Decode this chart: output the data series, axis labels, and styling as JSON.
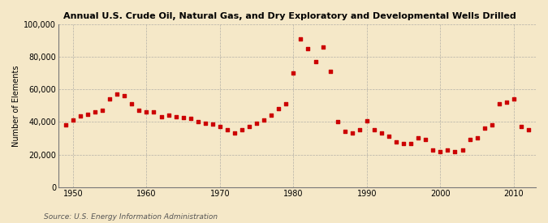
{
  "title": "Annual U.S. Crude Oil, Natural Gas, and Dry Exploratory and Developmental Wells Drilled",
  "ylabel": "Number of Elements",
  "source": "Source: U.S. Energy Information Administration",
  "background_color": "#f5e8c8",
  "plot_bg_color": "#f5e8c8",
  "marker_color": "#cc0000",
  "xlim": [
    1948,
    2013
  ],
  "ylim": [
    0,
    100000
  ],
  "yticks": [
    0,
    20000,
    40000,
    60000,
    80000,
    100000
  ],
  "xticks": [
    1950,
    1960,
    1970,
    1980,
    1990,
    2000,
    2010
  ],
  "years": [
    1949,
    1950,
    1951,
    1952,
    1953,
    1954,
    1955,
    1956,
    1957,
    1958,
    1959,
    1960,
    1961,
    1962,
    1963,
    1964,
    1965,
    1966,
    1967,
    1968,
    1969,
    1970,
    1971,
    1972,
    1973,
    1974,
    1975,
    1976,
    1977,
    1978,
    1979,
    1980,
    1981,
    1982,
    1983,
    1984,
    1985,
    1986,
    1987,
    1988,
    1989,
    1990,
    1991,
    1992,
    1993,
    1994,
    1995,
    1996,
    1997,
    1998,
    1999,
    2000,
    2001,
    2002,
    2003,
    2004,
    2005,
    2006,
    2007,
    2008,
    2009,
    2010,
    2011,
    2012
  ],
  "values": [
    38000,
    41000,
    43500,
    44500,
    46000,
    47000,
    54000,
    57000,
    56000,
    51000,
    47000,
    46000,
    46000,
    43000,
    44000,
    43000,
    42500,
    42000,
    40000,
    39000,
    38500,
    37000,
    35000,
    33000,
    35000,
    37000,
    39000,
    41000,
    44000,
    48000,
    51000,
    70000,
    91000,
    85000,
    77000,
    86000,
    71000,
    40000,
    34000,
    33000,
    35000,
    40500,
    35000,
    33000,
    31000,
    28000,
    27000,
    27000,
    30000,
    29000,
    23000,
    22000,
    23000,
    22000,
    23000,
    29000,
    30000,
    36000,
    38000,
    51000,
    52000,
    54000,
    37000,
    35000
  ]
}
